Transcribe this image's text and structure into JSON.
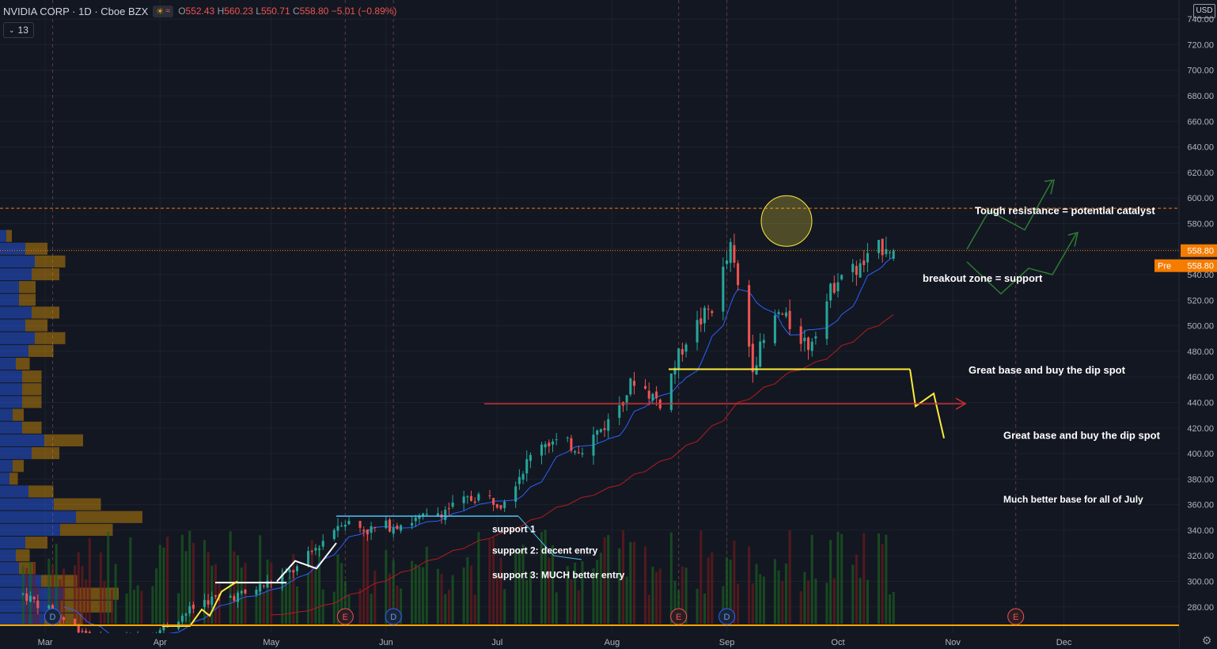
{
  "header": {
    "symbol": "NVIDIA CORP · 1D · Cboe BZX",
    "open": "552.43",
    "high": "560.23",
    "low": "550.71",
    "close": "558.80",
    "change": "−5.01 (−0.89%)",
    "indicator_count": "13",
    "currency": "USD"
  },
  "colors": {
    "background": "#131722",
    "up": "#26a69a",
    "down": "#ef5350",
    "accent_orange": "#f57c00",
    "annotation_yellow": "#ffeb3b",
    "annotation_red": "#d32f2f",
    "annotation_green": "#2e7d32"
  },
  "chart_data": {
    "type": "candlestick",
    "ylim": [
      265,
      750
    ],
    "y_ticks": [
      280,
      300,
      320,
      340,
      360,
      380,
      400,
      420,
      440,
      460,
      480,
      500,
      520,
      540,
      560,
      580,
      600,
      620,
      640,
      660,
      680,
      700,
      720,
      740
    ],
    "y_tick_labels": [
      "280.00",
      "300.00",
      "320.00",
      "340.00",
      "360.00",
      "380.00",
      "400.00",
      "420.00",
      "440.00",
      "460.00",
      "480.00",
      "500.00",
      "520.00",
      "540.00",
      "560.00",
      "580.00",
      "600.00",
      "620.00",
      "640.00",
      "660.00",
      "680.00",
      "700.00",
      "720.00",
      "740.00"
    ],
    "months": [
      {
        "label": "Mar",
        "date": "2020-03-01"
      },
      {
        "label": "Apr",
        "date": "2020-04-01"
      },
      {
        "label": "May",
        "date": "2020-05-01"
      },
      {
        "label": "Jun",
        "date": "2020-06-01"
      },
      {
        "label": "Jul",
        "date": "2020-07-01"
      },
      {
        "label": "Aug",
        "date": "2020-08-01"
      },
      {
        "label": "Sep",
        "date": "2020-09-01"
      },
      {
        "label": "Oct",
        "date": "2020-10-01"
      },
      {
        "label": "Nov",
        "date": "2020-11-01"
      },
      {
        "label": "Dec",
        "date": "2020-12-01"
      }
    ],
    "x_range": [
      "2020-02-21",
      "2020-12-31"
    ],
    "last_price": 558.8,
    "last_price_label": "558.80",
    "pre_label": "Pre",
    "pre_price_label": "558.80",
    "resistance_price": 592,
    "events": [
      {
        "label": "D",
        "date": "2020-03-03",
        "kind": "dividend"
      },
      {
        "label": "E",
        "date": "2020-05-21",
        "kind": "earnings"
      },
      {
        "label": "D",
        "date": "2020-06-03",
        "kind": "dividend"
      },
      {
        "label": "E",
        "date": "2020-08-19",
        "kind": "earnings"
      },
      {
        "label": "D",
        "date": "2020-09-01",
        "kind": "dividend"
      },
      {
        "label": "E",
        "date": "2020-11-18",
        "kind": "earnings"
      }
    ],
    "anchors": [
      {
        "date": "2020-02-24",
        "price": 290
      },
      {
        "date": "2020-03-06",
        "price": 270
      },
      {
        "date": "2020-03-18",
        "price": 250
      },
      {
        "date": "2020-04-01",
        "price": 262
      },
      {
        "date": "2020-04-13",
        "price": 285
      },
      {
        "date": "2020-04-24",
        "price": 290
      },
      {
        "date": "2020-05-08",
        "price": 310
      },
      {
        "date": "2020-05-20",
        "price": 348
      },
      {
        "date": "2020-05-27",
        "price": 340
      },
      {
        "date": "2020-06-12",
        "price": 350
      },
      {
        "date": "2020-06-26",
        "price": 367
      },
      {
        "date": "2020-07-02",
        "price": 362
      },
      {
        "date": "2020-07-13",
        "price": 410
      },
      {
        "date": "2020-07-24",
        "price": 405
      },
      {
        "date": "2020-07-31",
        "price": 425
      },
      {
        "date": "2020-08-07",
        "price": 458
      },
      {
        "date": "2020-08-14",
        "price": 440
      },
      {
        "date": "2020-08-21",
        "price": 490
      },
      {
        "date": "2020-08-28",
        "price": 515
      },
      {
        "date": "2020-09-02",
        "price": 560
      },
      {
        "date": "2020-09-08",
        "price": 470
      },
      {
        "date": "2020-09-15",
        "price": 510
      },
      {
        "date": "2020-09-23",
        "price": 485
      },
      {
        "date": "2020-10-01",
        "price": 540
      },
      {
        "date": "2020-10-07",
        "price": 545
      },
      {
        "date": "2020-10-14",
        "price": 565
      },
      {
        "date": "2020-10-16",
        "price": 558.8
      }
    ],
    "annotations": {
      "resistance": "Tough resistance = potential catalyst",
      "breakout": "breakout zone = support",
      "base1": "Great base and buy the dip spot",
      "base2": "Great base and buy the dip spot",
      "july": "Much better base for all of July",
      "support1": "support 1",
      "support2": "support 2: decent entry",
      "support3": "support 3: MUCH better entry"
    },
    "annotation_levels": {
      "yellow_base": 466,
      "red_arrow": 439,
      "blue_support": 351,
      "white_support": 299
    }
  }
}
